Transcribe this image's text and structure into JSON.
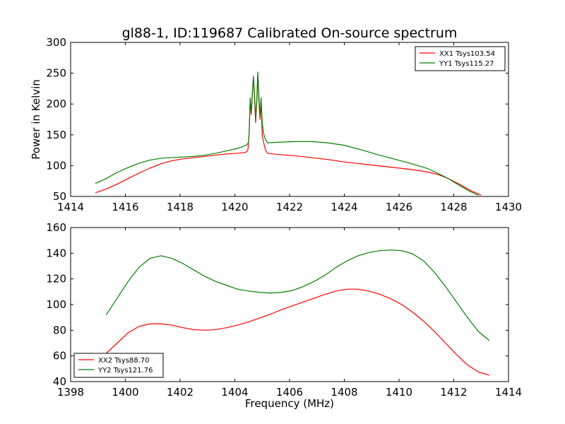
{
  "title": "gl88-1, ID:119687 Calibrated On-source spectrum",
  "chart_data": [
    {
      "type": "line",
      "title": "gl88-1, ID:119687 Calibrated On-source spectrum",
      "xlabel": "",
      "ylabel": "Power in Kelvin",
      "xlim": [
        1414,
        1430
      ],
      "ylim": [
        50,
        300
      ],
      "xticks": [
        "1414",
        "1416",
        "1418",
        "1420",
        "1422",
        "1424",
        "1426",
        "1428",
        "1430"
      ],
      "yticks": [
        "50",
        "100",
        "150",
        "200",
        "250",
        "300"
      ],
      "grid": false,
      "legend_position": "top-right",
      "series": [
        {
          "name": "XX1 Tsys103.54",
          "color": "#ff0000",
          "points": [
            [
              1414.9,
              56
            ],
            [
              1415.3,
              62
            ],
            [
              1415.7,
              70
            ],
            [
              1416.1,
              79
            ],
            [
              1416.5,
              88
            ],
            [
              1416.9,
              96
            ],
            [
              1417.3,
              103
            ],
            [
              1417.7,
              108
            ],
            [
              1418.1,
              111
            ],
            [
              1418.5,
              113
            ],
            [
              1418.9,
              115
            ],
            [
              1419.3,
              117
            ],
            [
              1419.7,
              119
            ],
            [
              1420.1,
              120
            ],
            [
              1420.3,
              121
            ],
            [
              1420.42,
              122
            ],
            [
              1420.48,
              126
            ],
            [
              1420.52,
              150
            ],
            [
              1420.56,
              205
            ],
            [
              1420.6,
              183
            ],
            [
              1420.64,
              215
            ],
            [
              1420.68,
              243
            ],
            [
              1420.72,
              210
            ],
            [
              1420.76,
              170
            ],
            [
              1420.8,
              200
            ],
            [
              1420.84,
              248
            ],
            [
              1420.88,
              205
            ],
            [
              1420.92,
              175
            ],
            [
              1420.96,
              203
            ],
            [
              1421.0,
              150
            ],
            [
              1421.05,
              138
            ],
            [
              1421.12,
              125
            ],
            [
              1421.2,
              120
            ],
            [
              1421.6,
              118
            ],
            [
              1422.2,
              116
            ],
            [
              1422.8,
              113
            ],
            [
              1423.4,
              110
            ],
            [
              1424.0,
              106
            ],
            [
              1424.6,
              103
            ],
            [
              1425.2,
              100
            ],
            [
              1425.8,
              97
            ],
            [
              1426.4,
              94
            ],
            [
              1427.0,
              90
            ],
            [
              1427.4,
              86
            ],
            [
              1427.8,
              79
            ],
            [
              1428.2,
              70
            ],
            [
              1428.6,
              60
            ],
            [
              1429.0,
              52
            ]
          ]
        },
        {
          "name": "YY1 Tsys115.27",
          "color": "#008000",
          "points": [
            [
              1414.9,
              71
            ],
            [
              1415.3,
              79
            ],
            [
              1415.7,
              89
            ],
            [
              1416.1,
              97
            ],
            [
              1416.5,
              104
            ],
            [
              1416.9,
              109
            ],
            [
              1417.3,
              112
            ],
            [
              1417.7,
              113
            ],
            [
              1418.1,
              114
            ],
            [
              1418.5,
              115
            ],
            [
              1418.9,
              117
            ],
            [
              1419.3,
              120
            ],
            [
              1419.7,
              124
            ],
            [
              1420.1,
              128
            ],
            [
              1420.3,
              131
            ],
            [
              1420.45,
              134
            ],
            [
              1420.5,
              138
            ],
            [
              1420.53,
              160
            ],
            [
              1420.56,
              210
            ],
            [
              1420.6,
              186
            ],
            [
              1420.64,
              220
            ],
            [
              1420.68,
              245
            ],
            [
              1420.72,
              215
            ],
            [
              1420.76,
              176
            ],
            [
              1420.8,
              205
            ],
            [
              1420.84,
              252
            ],
            [
              1420.88,
              212
            ],
            [
              1420.92,
              180
            ],
            [
              1420.96,
              210
            ],
            [
              1421.0,
              170
            ],
            [
              1421.05,
              152
            ],
            [
              1421.12,
              142
            ],
            [
              1421.2,
              137
            ],
            [
              1421.6,
              138
            ],
            [
              1422.2,
              139
            ],
            [
              1422.8,
              139
            ],
            [
              1423.4,
              137
            ],
            [
              1424.0,
              133
            ],
            [
              1424.6,
              126
            ],
            [
              1425.2,
              118
            ],
            [
              1425.8,
              111
            ],
            [
              1426.4,
              104
            ],
            [
              1427.0,
              96
            ],
            [
              1427.4,
              88
            ],
            [
              1427.8,
              79
            ],
            [
              1428.2,
              68
            ],
            [
              1428.6,
              58
            ],
            [
              1428.9,
              52
            ]
          ]
        }
      ]
    },
    {
      "type": "line",
      "title": "",
      "xlabel": "Frequency (MHz)",
      "ylabel": "",
      "xlim": [
        1398,
        1414
      ],
      "ylim": [
        40,
        160
      ],
      "xticks": [
        "1398",
        "1400",
        "1402",
        "1404",
        "1406",
        "1408",
        "1410",
        "1412",
        "1414"
      ],
      "yticks": [
        "40",
        "60",
        "80",
        "100",
        "120",
        "140",
        "160"
      ],
      "grid": false,
      "legend_position": "bottom-left",
      "series": [
        {
          "name": "XX2 Tsys88.70",
          "color": "#ff0000",
          "points": [
            [
              1399.3,
              62
            ],
            [
              1399.7,
              70
            ],
            [
              1400.1,
              78
            ],
            [
              1400.5,
              83
            ],
            [
              1400.9,
              85
            ],
            [
              1401.3,
              85
            ],
            [
              1401.7,
              84
            ],
            [
              1402.1,
              82
            ],
            [
              1402.5,
              80.5
            ],
            [
              1402.9,
              80
            ],
            [
              1403.3,
              80.5
            ],
            [
              1403.7,
              82
            ],
            [
              1404.1,
              84
            ],
            [
              1404.5,
              86.5
            ],
            [
              1404.9,
              89.5
            ],
            [
              1405.3,
              92.5
            ],
            [
              1405.7,
              96
            ],
            [
              1406.1,
              99
            ],
            [
              1406.5,
              102
            ],
            [
              1406.9,
              105
            ],
            [
              1407.3,
              108
            ],
            [
              1407.7,
              110.5
            ],
            [
              1408.1,
              112
            ],
            [
              1408.5,
              112
            ],
            [
              1408.9,
              110.5
            ],
            [
              1409.3,
              108
            ],
            [
              1409.7,
              104.5
            ],
            [
              1410.1,
              100
            ],
            [
              1410.5,
              94
            ],
            [
              1410.9,
              87
            ],
            [
              1411.3,
              79
            ],
            [
              1411.7,
              70
            ],
            [
              1412.1,
              61
            ],
            [
              1412.5,
              53
            ],
            [
              1412.9,
              47.5
            ],
            [
              1413.3,
              45
            ]
          ]
        },
        {
          "name": "YY2 Tsys121.76",
          "color": "#008000",
          "points": [
            [
              1399.3,
              92
            ],
            [
              1399.7,
              105
            ],
            [
              1400.1,
              118
            ],
            [
              1400.5,
              129
            ],
            [
              1400.9,
              136
            ],
            [
              1401.3,
              138
            ],
            [
              1401.7,
              136
            ],
            [
              1402.1,
              132
            ],
            [
              1402.5,
              127
            ],
            [
              1402.9,
              122
            ],
            [
              1403.3,
              118
            ],
            [
              1403.7,
              115
            ],
            [
              1404.1,
              112
            ],
            [
              1404.5,
              110.5
            ],
            [
              1404.9,
              109.5
            ],
            [
              1405.3,
              109
            ],
            [
              1405.7,
              109.5
            ],
            [
              1406.1,
              111
            ],
            [
              1406.5,
              114
            ],
            [
              1406.9,
              118
            ],
            [
              1407.3,
              123
            ],
            [
              1407.7,
              129
            ],
            [
              1408.1,
              134
            ],
            [
              1408.5,
              138
            ],
            [
              1408.9,
              140.5
            ],
            [
              1409.3,
              142
            ],
            [
              1409.7,
              142.5
            ],
            [
              1410.1,
              142
            ],
            [
              1410.5,
              139.5
            ],
            [
              1410.9,
              134
            ],
            [
              1411.3,
              125
            ],
            [
              1411.7,
              114
            ],
            [
              1412.1,
              102
            ],
            [
              1412.5,
              90
            ],
            [
              1412.9,
              79
            ],
            [
              1413.3,
              72
            ]
          ]
        }
      ]
    }
  ]
}
